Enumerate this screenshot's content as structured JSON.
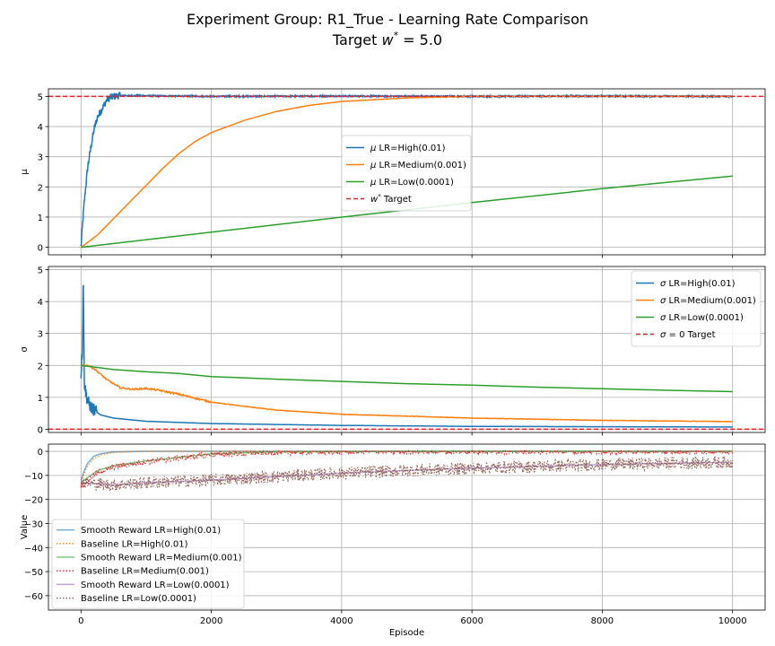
{
  "figure": {
    "title_line1": "Experiment Group: R1_True - Learning Rate Comparison",
    "title_line2_prefix": "Target ",
    "title_line2_math": "w",
    "title_line2_sup": "*",
    "title_line2_suffix": " = 5.0"
  },
  "chart_data": [
    {
      "type": "line",
      "panel": "mu",
      "ylabel": "μ",
      "xlim": [
        -500,
        10500
      ],
      "ylim": [
        -0.25,
        5.25
      ],
      "yticks": [
        0,
        1,
        2,
        3,
        4,
        5
      ],
      "xticks": [
        0,
        2000,
        4000,
        6000,
        8000,
        10000
      ],
      "grid": true,
      "legend_position": "center",
      "series": [
        {
          "name": "μ LR=High(0.01)",
          "label_sym": "μ",
          "label_rest": " LR=High(0.01)",
          "color": "#1f77b4",
          "style": "solid",
          "noisy": false,
          "points": [
            [
              0,
              0
            ],
            [
              25,
              0.8
            ],
            [
              50,
              1.5
            ],
            [
              100,
              2.6
            ],
            [
              150,
              3.3
            ],
            [
              200,
              3.9
            ],
            [
              250,
              4.3
            ],
            [
              300,
              4.5
            ],
            [
              400,
              4.9
            ],
            [
              500,
              5.0
            ],
            [
              600,
              5.03
            ],
            [
              1000,
              5.02
            ],
            [
              2000,
              5.0
            ],
            [
              4000,
              5.01
            ],
            [
              6000,
              5.0
            ],
            [
              8000,
              5.01
            ],
            [
              10000,
              5.0
            ]
          ]
        },
        {
          "name": "μ LR=Medium(0.001)",
          "label_sym": "μ",
          "label_rest": " LR=Medium(0.001)",
          "color": "#ff7f0e",
          "style": "solid",
          "noisy": false,
          "points": [
            [
              0,
              0
            ],
            [
              250,
              0.4
            ],
            [
              500,
              0.95
            ],
            [
              750,
              1.5
            ],
            [
              1000,
              2.05
            ],
            [
              1250,
              2.6
            ],
            [
              1500,
              3.1
            ],
            [
              1750,
              3.5
            ],
            [
              2000,
              3.8
            ],
            [
              2500,
              4.2
            ],
            [
              3000,
              4.5
            ],
            [
              3500,
              4.7
            ],
            [
              4000,
              4.83
            ],
            [
              5000,
              4.95
            ],
            [
              6000,
              5.0
            ],
            [
              8000,
              5.0
            ],
            [
              10000,
              5.0
            ]
          ]
        },
        {
          "name": "μ LR=Low(0.0001)",
          "label_sym": "μ",
          "label_rest": " LR=Low(0.0001)",
          "color": "#2ca02c",
          "style": "solid",
          "noisy": false,
          "points": [
            [
              0,
              0
            ],
            [
              2000,
              0.5
            ],
            [
              4000,
              1.0
            ],
            [
              6000,
              1.48
            ],
            [
              8000,
              1.94
            ],
            [
              10000,
              2.36
            ]
          ]
        },
        {
          "name": "w* Target",
          "label_sym": "w",
          "label_sup": "*",
          "label_rest": " Target",
          "color": "#d62728",
          "style": "dashed",
          "noisy": false,
          "hline": 5.0,
          "points": [
            [
              -500,
              5.0
            ],
            [
              10500,
              5.0
            ]
          ]
        }
      ]
    },
    {
      "type": "line",
      "panel": "sigma",
      "ylabel": "σ",
      "xlim": [
        -500,
        10500
      ],
      "ylim": [
        -0.1,
        5.1
      ],
      "yticks": [
        0,
        1,
        2,
        3,
        4,
        5
      ],
      "xticks": [
        0,
        2000,
        4000,
        6000,
        8000,
        10000
      ],
      "grid": true,
      "legend_position": "upper right",
      "series": [
        {
          "name": "σ LR=High(0.01)",
          "label_sym": "σ",
          "label_rest": " LR=High(0.01)",
          "color": "#1f77b4",
          "style": "solid",
          "noisy": false,
          "points": [
            [
              0,
              1.7
            ],
            [
              20,
              2.5
            ],
            [
              35,
              4.9
            ],
            [
              50,
              1.5
            ],
            [
              70,
              1.2
            ],
            [
              100,
              0.9
            ],
            [
              150,
              0.7
            ],
            [
              200,
              0.6
            ],
            [
              300,
              0.45
            ],
            [
              500,
              0.35
            ],
            [
              1000,
              0.25
            ],
            [
              2000,
              0.18
            ],
            [
              4000,
              0.12
            ],
            [
              6000,
              0.09
            ],
            [
              8000,
              0.08
            ],
            [
              10000,
              0.07
            ]
          ]
        },
        {
          "name": "σ LR=Medium(0.001)",
          "label_sym": "σ",
          "label_rest": " LR=Medium(0.001)",
          "color": "#ff7f0e",
          "style": "solid",
          "noisy": false,
          "points": [
            [
              0,
              2.0
            ],
            [
              100,
              2.0
            ],
            [
              200,
              1.9
            ],
            [
              400,
              1.55
            ],
            [
              600,
              1.3
            ],
            [
              800,
              1.25
            ],
            [
              1000,
              1.28
            ],
            [
              1200,
              1.22
            ],
            [
              1500,
              1.1
            ],
            [
              1800,
              0.95
            ],
            [
              2000,
              0.85
            ],
            [
              2500,
              0.72
            ],
            [
              3000,
              0.6
            ],
            [
              4000,
              0.47
            ],
            [
              6000,
              0.35
            ],
            [
              8000,
              0.28
            ],
            [
              10000,
              0.24
            ]
          ]
        },
        {
          "name": "σ LR=Low(0.0001)",
          "label_sym": "σ",
          "label_rest": " LR=Low(0.0001)",
          "color": "#2ca02c",
          "style": "solid",
          "noisy": false,
          "points": [
            [
              0,
              2.0
            ],
            [
              500,
              1.87
            ],
            [
              1000,
              1.8
            ],
            [
              1500,
              1.75
            ],
            [
              2000,
              1.65
            ],
            [
              3000,
              1.57
            ],
            [
              4000,
              1.5
            ],
            [
              5000,
              1.43
            ],
            [
              6000,
              1.38
            ],
            [
              7000,
              1.32
            ],
            [
              8000,
              1.27
            ],
            [
              9000,
              1.22
            ],
            [
              10000,
              1.18
            ]
          ]
        },
        {
          "name": "σ = 0 Target",
          "label_sym": "σ",
          "label_rest": " = 0 Target",
          "color": "#d62728",
          "style": "dashed",
          "noisy": false,
          "hline": 0,
          "points": [
            [
              -500,
              0
            ],
            [
              10500,
              0
            ]
          ]
        }
      ]
    },
    {
      "type": "line",
      "panel": "reward",
      "ylabel": "Value",
      "xlabel": "Episode",
      "xlim": [
        -500,
        10500
      ],
      "ylim": [
        -66,
        3
      ],
      "yticks": [
        0,
        -10,
        -20,
        -30,
        -40,
        -50,
        -60
      ],
      "xticks": [
        0,
        2000,
        4000,
        6000,
        8000,
        10000
      ],
      "grid": true,
      "legend_position": "lower left",
      "series": [
        {
          "name": "Smooth Reward LR=High(0.01)",
          "color": "#1f77b4",
          "style": "solid",
          "alpha": 0.6,
          "noisy": false,
          "points": [
            [
              0,
              -12
            ],
            [
              50,
              -8
            ],
            [
              100,
              -5
            ],
            [
              200,
              -2
            ],
            [
              300,
              -1
            ],
            [
              500,
              -0.3
            ],
            [
              1000,
              0
            ],
            [
              10000,
              0
            ]
          ]
        },
        {
          "name": "Baseline LR=High(0.01)",
          "color": "#ff7f0e",
          "style": "dotted",
          "alpha": 0.9,
          "noisy": false,
          "points": [
            [
              0,
              -14
            ],
            [
              50,
              -9
            ],
            [
              100,
              -6
            ],
            [
              200,
              -3
            ],
            [
              300,
              -1.5
            ],
            [
              500,
              -0.4
            ],
            [
              1000,
              0
            ],
            [
              10000,
              0
            ]
          ]
        },
        {
          "name": "Smooth Reward LR=Medium(0.001)",
          "color": "#2ca02c",
          "style": "solid",
          "alpha": 0.6,
          "noisy": false,
          "points": [
            [
              0,
              -13
            ],
            [
              250,
              -8
            ],
            [
              500,
              -6
            ],
            [
              1000,
              -4
            ],
            [
              1500,
              -2.5
            ],
            [
              2000,
              -1
            ],
            [
              3000,
              -0.3
            ],
            [
              5000,
              0
            ],
            [
              10000,
              0
            ]
          ]
        },
        {
          "name": "Baseline LR=Medium(0.001)",
          "color": "#d62728",
          "style": "dotted",
          "alpha": 0.9,
          "noisy": true,
          "noise": 1.2,
          "points": [
            [
              0,
              -14
            ],
            [
              250,
              -9
            ],
            [
              500,
              -6.5
            ],
            [
              1000,
              -4.2
            ],
            [
              1500,
              -2.8
            ],
            [
              2000,
              -1.3
            ],
            [
              3000,
              -0.4
            ],
            [
              5000,
              0
            ],
            [
              10000,
              0
            ]
          ]
        },
        {
          "name": "Smooth Reward LR=Low(0.0001)",
          "color": "#9467bd",
          "style": "solid",
          "alpha": 0.6,
          "noisy": false,
          "points": [
            [
              0,
              -13
            ],
            [
              500,
              -14
            ],
            [
              1000,
              -13
            ],
            [
              2000,
              -12
            ],
            [
              4000,
              -9
            ],
            [
              6000,
              -7
            ],
            [
              8000,
              -5.5
            ],
            [
              10000,
              -4.5
            ]
          ]
        },
        {
          "name": "Baseline LR=Low(0.0001)",
          "color": "#8c564b",
          "style": "dotted",
          "alpha": 0.9,
          "noisy": true,
          "noise": 2.6,
          "points": [
            [
              0,
              -13
            ],
            [
              500,
              -14
            ],
            [
              1000,
              -13
            ],
            [
              2000,
              -12
            ],
            [
              4000,
              -9
            ],
            [
              6000,
              -7
            ],
            [
              8000,
              -5.5
            ],
            [
              10000,
              -4.5
            ]
          ]
        }
      ]
    }
  ]
}
